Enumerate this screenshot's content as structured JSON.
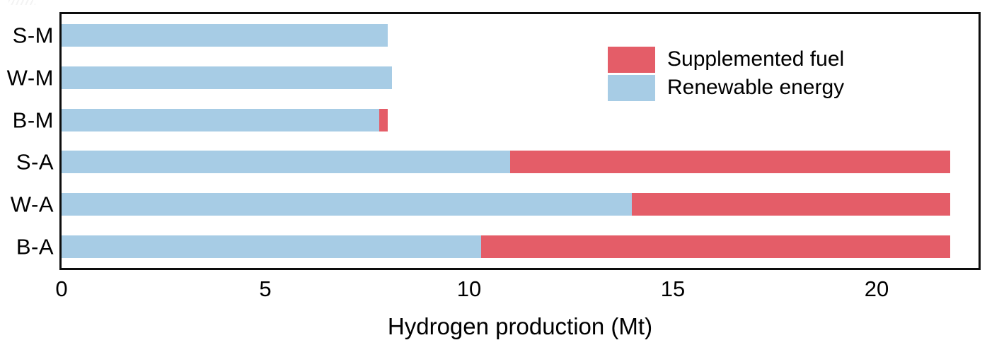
{
  "legend": {
    "items": [
      {
        "label": "Supplemented fuel",
        "color": "#e45d68"
      },
      {
        "label": "Renewable energy",
        "color": "#a7cce5"
      }
    ]
  },
  "chart_data": {
    "type": "bar",
    "orientation": "horizontal",
    "stacked": true,
    "title": "",
    "xlabel": "Hydrogen production (Mt)",
    "ylabel": "",
    "categories": [
      "S-M",
      "W-M",
      "B-M",
      "S-A",
      "W-A",
      "B-A"
    ],
    "series": [
      {
        "name": "Renewable energy",
        "color": "#a7cce5",
        "values": [
          8.0,
          8.1,
          7.8,
          11.0,
          14.0,
          10.3
        ]
      },
      {
        "name": "Supplemented fuel",
        "color": "#e45d68",
        "values": [
          0,
          0,
          0.2,
          10.8,
          7.8,
          11.5
        ]
      }
    ],
    "totals": [
      8.0,
      8.1,
      8.0,
      21.8,
      21.8,
      21.8
    ],
    "xlim": [
      0,
      22.5
    ],
    "x_ticks": [
      0,
      5,
      10,
      15,
      20
    ],
    "grid": false,
    "frame": "full box",
    "legend_position": "upper right inside plot"
  }
}
